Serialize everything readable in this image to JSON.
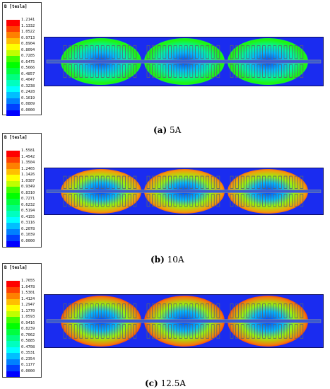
{
  "legend_title": "B [tesla]",
  "palette": [
    "#ff0000",
    "#ff4000",
    "#ff8000",
    "#ffbf00",
    "#ffff00",
    "#bfff00",
    "#40ff00",
    "#00ff00",
    "#00ff40",
    "#00ff80",
    "#00ffbf",
    "#00ffff",
    "#00bfff",
    "#0080ff",
    "#0040ff",
    "#0000ff"
  ],
  "panels": [
    {
      "caption_letter": "(a)",
      "caption_text": " 5A",
      "legend_values": [
        "1.2141",
        "1.1332",
        "1.0522",
        "0.9713",
        "0.8904",
        "0.8094",
        "0.7285",
        "0.6475",
        "0.5666",
        "0.4857",
        "0.4047",
        "0.3238",
        "0.2428",
        "0.1619",
        "0.0809",
        "0.0000"
      ]
    },
    {
      "caption_letter": "(b)",
      "caption_text": " 10A",
      "legend_values": [
        "1.5581",
        "1.4542",
        "1.3504",
        "1.2465",
        "1.1426",
        "1.0387",
        "0.9349",
        "0.8310",
        "0.7271",
        "0.6232",
        "0.5194",
        "0.4155",
        "0.3116",
        "0.2078",
        "0.1039",
        "0.0000"
      ]
    },
    {
      "caption_letter": "(c)",
      "caption_text": " 12.5A",
      "legend_values": [
        "1.7655",
        "1.6478",
        "1.5301",
        "1.4124",
        "1.2947",
        "1.1770",
        "1.0593",
        "0.9416",
        "0.8239",
        "0.7062",
        "0.5885",
        "0.4708",
        "0.3531",
        "0.2354",
        "0.1177",
        "0.0000"
      ]
    }
  ]
}
